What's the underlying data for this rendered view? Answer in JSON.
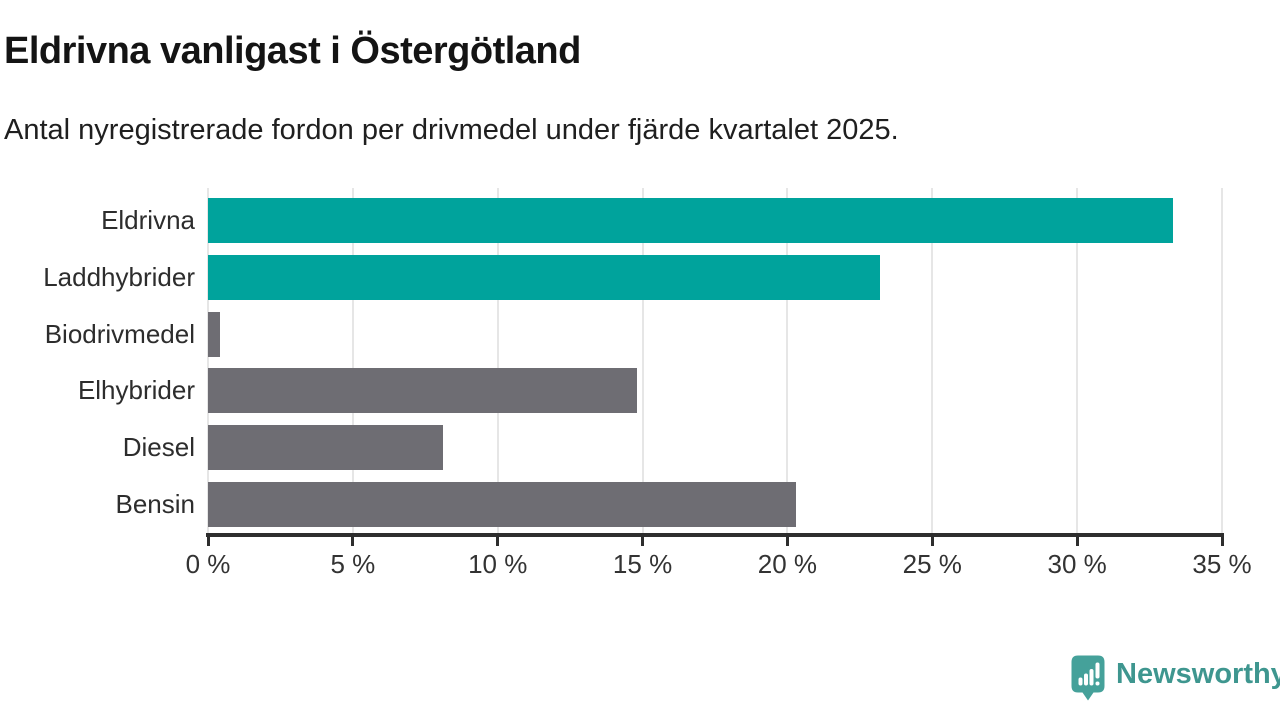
{
  "header": {
    "title": "Eldrivna vanligast i Östergötland",
    "subtitle": "Antal nyregistrerade fordon per drivmedel under fjärde kvartalet 2025."
  },
  "chart_data": {
    "type": "bar",
    "orientation": "horizontal",
    "title": "Eldrivna vanligast i Östergötland",
    "subtitle": "Antal nyregistrerade fordon per drivmedel under fjärde kvartalet 2025.",
    "categories": [
      "Eldrivna",
      "Laddhybrider",
      "Biodrivmedel",
      "Elhybrider",
      "Diesel",
      "Bensin"
    ],
    "values": [
      33.3,
      23.2,
      0.4,
      14.8,
      8.1,
      20.3
    ],
    "unit": "%",
    "bar_colors": [
      "#00a39c",
      "#00a39c",
      "#6e6d73",
      "#6e6d73",
      "#6e6d73",
      "#6e6d73"
    ],
    "xlabel": "",
    "ylabel": "",
    "xlim": [
      0,
      35
    ],
    "x_tick_values": [
      0,
      5,
      10,
      15,
      20,
      25,
      30,
      35
    ],
    "x_tick_labels": [
      "0 %",
      "5 %",
      "10 %",
      "15 %",
      "20 %",
      "25 %",
      "30 %",
      "35 %"
    ],
    "grid": "vertical-only",
    "legend": "none"
  },
  "colors": {
    "highlight": "#00a39c",
    "neutral": "#6e6d73",
    "gridline": "#e6e6e6",
    "axis": "#2e2e2e",
    "text": "#333333",
    "brand": "#3e968f"
  },
  "footer": {
    "brand_name": "Newsworthy",
    "logo_icon": "bar-chart-speech-bubble-icon"
  }
}
